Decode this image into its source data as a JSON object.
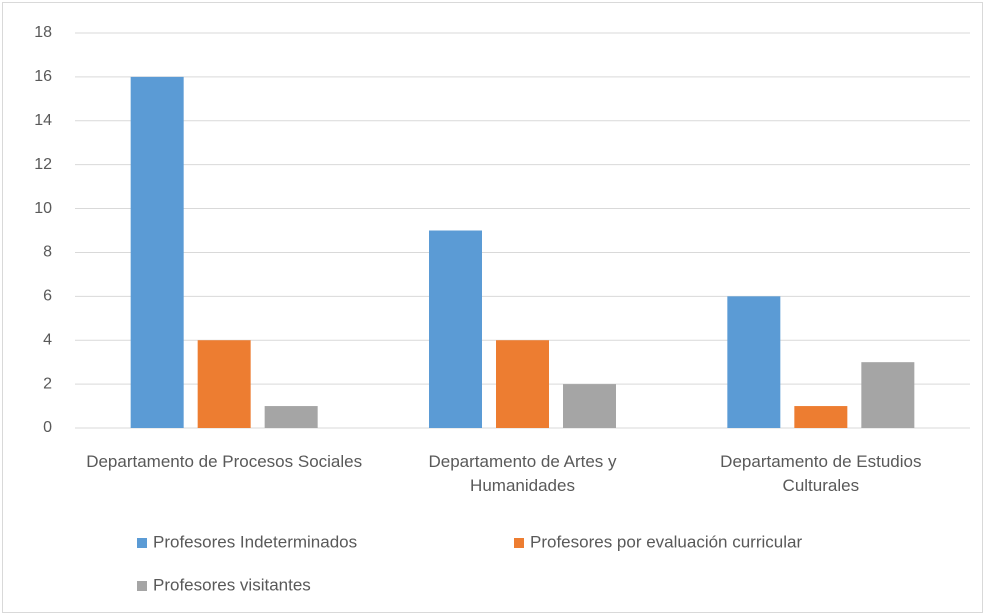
{
  "chart_data": {
    "type": "bar",
    "categories": [
      "Departamento de Procesos Sociales",
      "Departamento de Artes y Humanidades",
      "Departamento de Estudios Culturales"
    ],
    "series": [
      {
        "name": "Profesores Indeterminados",
        "color": "#5b9bd5",
        "values": [
          16,
          9,
          6
        ]
      },
      {
        "name": "Profesores por evaluación curricular",
        "color": "#ed7d31",
        "values": [
          4,
          4,
          1
        ]
      },
      {
        "name": "Profesores visitantes",
        "color": "#a5a5a5",
        "values": [
          1,
          2,
          3
        ]
      }
    ],
    "ylim": [
      0,
      18
    ],
    "yticks": [
      0,
      2,
      4,
      6,
      8,
      10,
      12,
      14,
      16,
      18
    ],
    "grid": true,
    "legend": "bottom"
  }
}
